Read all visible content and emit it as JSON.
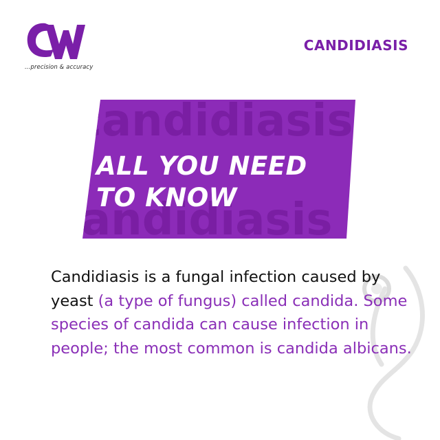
{
  "brand": {
    "logo_icon": "cw-monogram-logo",
    "logo_text": "CW",
    "tagline": "...precision & accuracy"
  },
  "header": {
    "title": "CANDIDIASIS"
  },
  "banner": {
    "watermark_word": "candidiasis",
    "headline_line1": "ALL YOU NEED",
    "headline_line2": "TO KNOW"
  },
  "body": {
    "black_text": "Candidiasis is a fungal infection caused by yeast ",
    "purple_text": "(a type of fungus) called candida. Some species of candida can cause infection in people; the most common is candida albicans."
  },
  "decoration": {
    "stethoscope_icon": "stethoscope-icon"
  },
  "colors": {
    "brand_purple": "#7a1fa8",
    "banner_purple": "#8c2bb8",
    "text_black": "#111111",
    "text_purple": "#8a2fb7"
  }
}
